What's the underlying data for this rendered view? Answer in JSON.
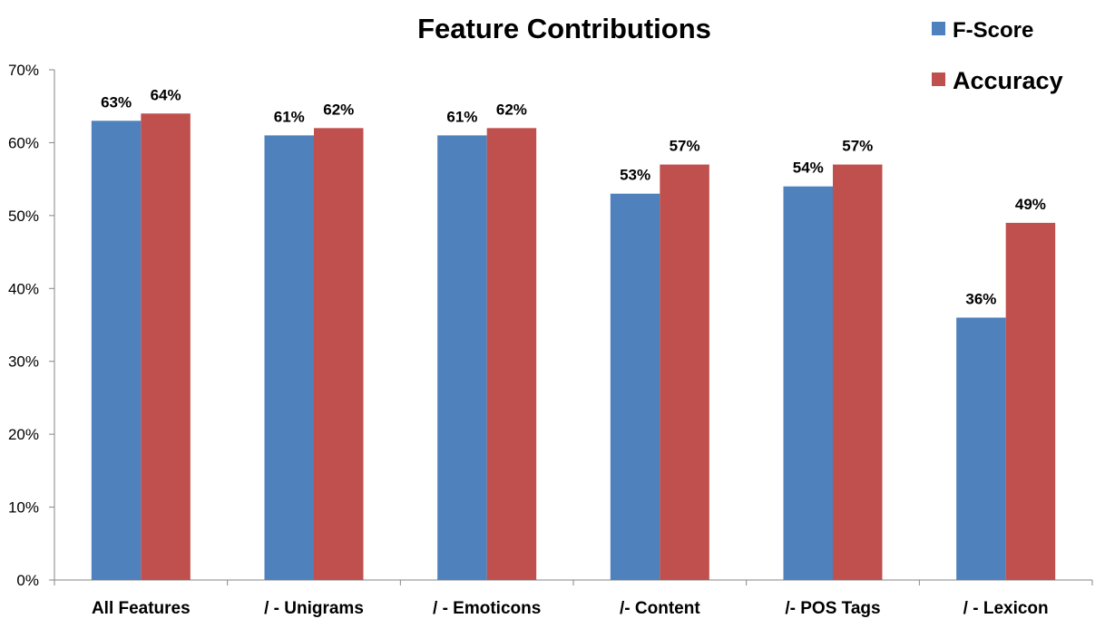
{
  "chart_data": {
    "type": "bar",
    "title": "Feature Contributions",
    "xlabel": "",
    "ylabel": "",
    "categories": [
      "All Features",
      "/ - Unigrams",
      "/ - Emoticons",
      "/- Content",
      "/- POS Tags",
      "/ - Lexicon"
    ],
    "series": [
      {
        "name": "F-Score",
        "values": [
          63,
          61,
          61,
          53,
          54,
          36
        ],
        "labels": [
          "63%",
          "61%",
          "61%",
          "53%",
          "54%",
          "36%"
        ],
        "color": "#4F81BD"
      },
      {
        "name": "Accuracy",
        "values": [
          64,
          62,
          62,
          57,
          57,
          49
        ],
        "labels": [
          "64%",
          "62%",
          "62%",
          "57%",
          "57%",
          "49%"
        ],
        "color": "#C0504D"
      }
    ],
    "ylim": [
      0,
      70
    ],
    "yticks": [
      0,
      10,
      20,
      30,
      40,
      50,
      60,
      70
    ],
    "ytick_labels": [
      "0%",
      "10%",
      "20%",
      "30%",
      "40%",
      "50%",
      "60%",
      "70%"
    ],
    "grid": false,
    "legend_position": "top-right"
  }
}
